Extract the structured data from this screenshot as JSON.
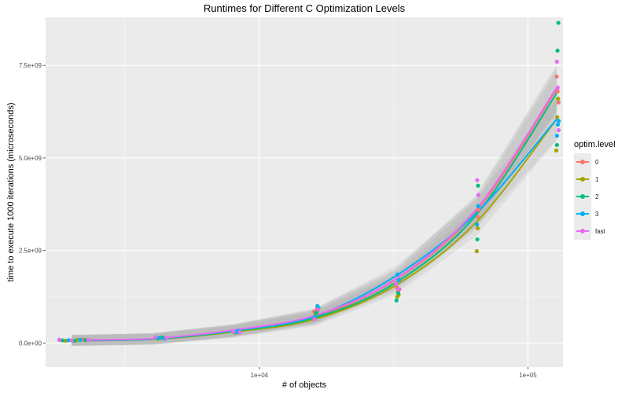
{
  "chart_data": {
    "type": "scatter",
    "title": "Runtimes for Different C Optimization Levels",
    "xlabel": "# of objects",
    "ylabel": "time to execute 1000 iterations (microseconds)",
    "x_scale": "log10",
    "xlim": [
      1600,
      135000
    ],
    "ylim": [
      -650000000,
      8800000000
    ],
    "x_ticks": [
      {
        "value": 10000,
        "label": "1e+04"
      },
      {
        "value": 100000,
        "label": "1e+05"
      }
    ],
    "x_minor_ticks": [
      3162,
      31623
    ],
    "y_ticks": [
      {
        "value": 0,
        "label": "0.0e+00"
      },
      {
        "value": 2500000000,
        "label": "2.5e+09"
      },
      {
        "value": 5000000000,
        "label": "5.0e+09"
      },
      {
        "value": 7500000000,
        "label": "7.5e+09"
      }
    ],
    "grid": true,
    "smooth_band": true,
    "legend_title": "optim.level",
    "legend_position": "right",
    "series": [
      {
        "name": "0",
        "color": "#F8766D",
        "x": [
          1800,
          2000,
          2200,
          4100,
          4300,
          8200,
          8400,
          16000,
          16400,
          32500,
          32800,
          65000,
          65500,
          128000,
          129000,
          130000
        ],
        "y": [
          80000000,
          70000000,
          90000000,
          150000000,
          130000000,
          300000000,
          320000000,
          850000000,
          920000000,
          1500000000,
          1400000000,
          3400000000,
          3600000000,
          7200000000,
          6800000000,
          6500000000
        ],
        "fit": [
          2000,
          4000,
          8000,
          16000,
          32000,
          64000,
          128000
        ],
        "fit_y": [
          60000000,
          110000000,
          330000000,
          700000000,
          1700000000,
          3550000000,
          6850000000
        ]
      },
      {
        "name": "1",
        "color": "#A3A500",
        "x": [
          1900,
          2100,
          4200,
          4400,
          8100,
          8300,
          16200,
          16500,
          32600,
          33000,
          64500,
          65000,
          127500,
          128500,
          129500
        ],
        "y": [
          60000000,
          80000000,
          120000000,
          140000000,
          280000000,
          310000000,
          780000000,
          880000000,
          1250000000,
          1300000000,
          2480000000,
          3100000000,
          5200000000,
          6100000000,
          6600000000
        ],
        "fit": [
          2000,
          4000,
          8000,
          16000,
          32000,
          64000,
          128000
        ],
        "fit_y": [
          70000000,
          100000000,
          300000000,
          640000000,
          1550000000,
          3250000000,
          6050000000
        ]
      },
      {
        "name": "2",
        "color": "#00BF7D",
        "x": [
          1850,
          2050,
          2250,
          4150,
          4350,
          8250,
          16300,
          16600,
          32400,
          32900,
          64800,
          65200,
          128200,
          128800,
          129800
        ],
        "y": [
          70000000,
          60000000,
          80000000,
          130000000,
          150000000,
          290000000,
          820000000,
          950000000,
          1150000000,
          1350000000,
          2800000000,
          4250000000,
          5350000000,
          7900000000,
          8650000000
        ],
        "fit": [
          2000,
          4000,
          8000,
          16000,
          32000,
          64000,
          128000
        ],
        "fit_y": [
          65000000,
          105000000,
          320000000,
          680000000,
          1620000000,
          3450000000,
          6750000000
        ]
      },
      {
        "name": "3",
        "color": "#00B0F6",
        "x": [
          1950,
          2150,
          4250,
          4450,
          8150,
          8350,
          16100,
          16450,
          32700,
          33100,
          64600,
          65300,
          128300,
          129200,
          130200
        ],
        "y": [
          75000000,
          85000000,
          140000000,
          120000000,
          300000000,
          330000000,
          700000000,
          1000000000,
          1850000000,
          1700000000,
          3200000000,
          3700000000,
          5600000000,
          5900000000,
          6000000000
        ],
        "fit": [
          2000,
          4000,
          8000,
          16000,
          32000,
          64000,
          128000
        ],
        "fit_y": [
          75000000,
          115000000,
          340000000,
          720000000,
          1800000000,
          3500000000,
          6050000000
        ]
      },
      {
        "name": "fast",
        "color": "#E76BF3",
        "x": [
          1800,
          2000,
          2300,
          4100,
          4500,
          8000,
          8450,
          16050,
          16550,
          32300,
          33200,
          64700,
          65400,
          128100,
          129100,
          130100
        ],
        "y": [
          90000000,
          70000000,
          85000000,
          160000000,
          140000000,
          310000000,
          290000000,
          650000000,
          900000000,
          1600000000,
          1450000000,
          4400000000,
          4000000000,
          7600000000,
          6900000000,
          5750000000
        ],
        "fit": [
          2000,
          4000,
          8000,
          16000,
          32000,
          64000,
          128000
        ],
        "fit_y": [
          80000000,
          120000000,
          350000000,
          740000000,
          1720000000,
          3600000000,
          6900000000
        ]
      }
    ]
  }
}
